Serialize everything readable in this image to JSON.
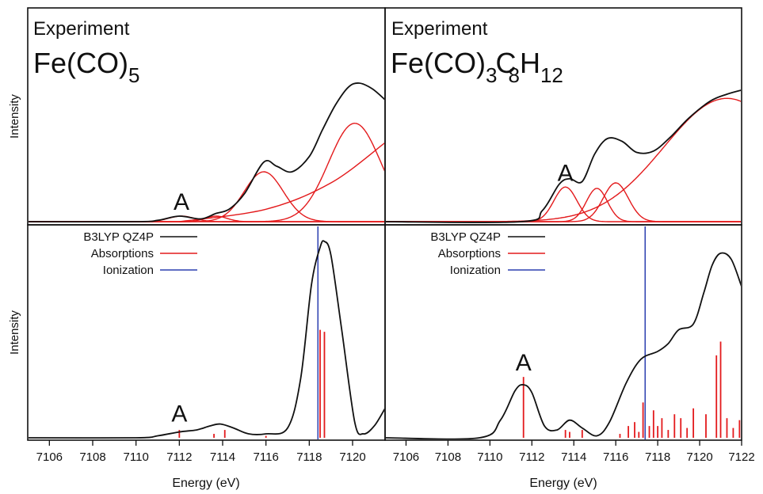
{
  "figure": {
    "ylabel_top": "Intensity",
    "ylabel_bottom": "Intensity",
    "xlabel_left": "Energy (eV)",
    "xlabel_right": "Energy (eV)"
  },
  "panels": {
    "top_left": {
      "heading": "Experiment",
      "formula": {
        "base": "Fe(CO)",
        "sub": "5"
      },
      "peak_label": "A"
    },
    "top_right": {
      "heading": "Experiment",
      "formula": {
        "base1": "Fe(CO)",
        "sub1": "3",
        "base2": "C",
        "sub2": "8",
        "base3": "H",
        "sub3": "12"
      },
      "peak_label": "A"
    },
    "bottom_left": {
      "legend": [
        "B3LYP QZ4P",
        "Absorptions",
        "Ionization"
      ],
      "peak_label": "A"
    },
    "bottom_right": {
      "legend": [
        "B3LYP QZ4P",
        "Absorptions",
        "Ionization"
      ],
      "peak_label": "A"
    }
  },
  "colors": {
    "total": "#111111",
    "components": "#e31a1c",
    "absorptions": "#e31a1c",
    "ionization": "#2b3fb0"
  },
  "chart_data": [
    {
      "type": "line",
      "panel": "top_left",
      "xlim": [
        7105,
        7121.5
      ],
      "ylim": [
        0,
        1
      ],
      "title": "Experiment Fe(CO)5",
      "series": [
        {
          "name": "total",
          "x": [
            7110,
            7111,
            7112,
            7113,
            7113.7,
            7114.3,
            7115,
            7115.9,
            7116.5,
            7117.2,
            7118,
            7118.6,
            7119.2,
            7119.8,
            7120.3,
            7120.9,
            7121.5
          ],
          "y": [
            0.0,
            0.01,
            0.04,
            0.02,
            0.06,
            0.09,
            0.2,
            0.43,
            0.4,
            0.36,
            0.47,
            0.66,
            0.84,
            0.97,
            1.0,
            0.96,
            0.88
          ]
        },
        {
          "name": "component_A",
          "center": 7112.1,
          "width": 0.6,
          "amplitude": 0.04
        },
        {
          "name": "component_2",
          "center": 7113.7,
          "width": 0.5,
          "amplitude": 0.04
        },
        {
          "name": "component_3",
          "center": 7115.9,
          "width": 0.9,
          "amplitude": 0.36
        },
        {
          "name": "component_4",
          "center": 7120.1,
          "width": 1.2,
          "amplitude": 0.71
        },
        {
          "name": "edge",
          "x": [
            7112,
            7116,
            7119,
            7121.5
          ],
          "y": [
            0.0,
            0.09,
            0.28,
            0.57
          ]
        }
      ],
      "annotations": [
        {
          "text": "A",
          "x": 7112.1
        }
      ]
    },
    {
      "type": "line",
      "panel": "top_right",
      "xlim": [
        7105,
        7122
      ],
      "ylim": [
        0,
        1
      ],
      "title": "Experiment Fe(CO)3C8H12",
      "series": [
        {
          "name": "total",
          "x": [
            7111.5,
            7112.5,
            7113.3,
            7113.8,
            7114.4,
            7115,
            7115.6,
            7116.3,
            7117,
            7117.8,
            7118.6,
            7119.5,
            7120.5,
            7121.3,
            7122
          ],
          "y": [
            0.0,
            0.08,
            0.27,
            0.31,
            0.29,
            0.49,
            0.6,
            0.58,
            0.5,
            0.51,
            0.61,
            0.75,
            0.87,
            0.92,
            0.95
          ]
        },
        {
          "name": "component_A",
          "center": 7113.6,
          "width": 0.55,
          "amplitude": 0.25
        },
        {
          "name": "component_2",
          "center": 7115.1,
          "width": 0.5,
          "amplitude": 0.24
        },
        {
          "name": "component_3",
          "center": 7116.0,
          "width": 0.6,
          "amplitude": 0.28
        },
        {
          "name": "component_4",
          "center": 7121.3,
          "width": 3.0,
          "amplitude": 0.89
        }
      ],
      "annotations": [
        {
          "text": "A",
          "x": 7113.6
        }
      ]
    },
    {
      "type": "line",
      "panel": "bottom_left",
      "xlim": [
        7105,
        7121.5
      ],
      "xticks": [
        7106,
        7108,
        7110,
        7112,
        7114,
        7116,
        7118,
        7120
      ],
      "ylim": [
        0,
        1
      ],
      "xlabel": "Energy (eV)",
      "series": [
        {
          "name": "B3LYP QZ4P",
          "x": [
            7110,
            7111,
            7112,
            7112.8,
            7113.4,
            7113.9,
            7114.5,
            7115.2,
            7116,
            7117,
            7117.6,
            7118.1,
            7118.5,
            7118.7,
            7119,
            7119.5,
            7120.1,
            7120.5,
            7121,
            7121.5
          ],
          "y": [
            0.0,
            0.01,
            0.03,
            0.04,
            0.06,
            0.07,
            0.05,
            0.02,
            0.02,
            0.05,
            0.3,
            0.78,
            0.97,
            1.0,
            0.93,
            0.55,
            0.08,
            0.02,
            0.06,
            0.15
          ]
        },
        {
          "name": "Absorptions",
          "x": [
            7112.0,
            7113.6,
            7114.1,
            7116.0,
            7118.5,
            7118.7
          ],
          "y": [
            0.04,
            0.02,
            0.04,
            0.01,
            0.55,
            0.54
          ]
        },
        {
          "name": "Ionization",
          "x": [
            7118.4
          ]
        }
      ],
      "annotations": [
        {
          "text": "A",
          "x": 7112.0
        }
      ]
    },
    {
      "type": "line",
      "panel": "bottom_right",
      "xlim": [
        7105,
        7122
      ],
      "xticks": [
        7106,
        7108,
        7110,
        7112,
        7114,
        7116,
        7118,
        7120,
        7122
      ],
      "ylim": [
        0,
        1
      ],
      "xlabel": "Energy (eV)",
      "series": [
        {
          "name": "B3LYP QZ4P",
          "x": [
            7109.5,
            7110.5,
            7111.2,
            7111.6,
            7112,
            7112.6,
            7113.2,
            7113.8,
            7114.4,
            7115.1,
            7115.7,
            7116.5,
            7117.2,
            7118,
            7118.5,
            7119,
            7119.7,
            7120.2,
            7120.6,
            7121,
            7121.5,
            7122
          ],
          "y": [
            0.0,
            0.09,
            0.24,
            0.27,
            0.23,
            0.06,
            0.04,
            0.09,
            0.05,
            0.01,
            0.08,
            0.28,
            0.4,
            0.44,
            0.48,
            0.55,
            0.58,
            0.74,
            0.88,
            0.94,
            0.91,
            0.77
          ]
        },
        {
          "name": "Absorptions",
          "x": [
            7111.6,
            7113.6,
            7113.8,
            7114.4,
            7116.2,
            7116.6,
            7116.9,
            7117.1,
            7117.3,
            7117.6,
            7117.8,
            7118.0,
            7118.2,
            7118.5,
            7118.8,
            7119.1,
            7119.4,
            7119.7,
            7120.3,
            7120.8,
            7121.0,
            7121.3,
            7121.6,
            7121.9
          ],
          "y": [
            0.31,
            0.04,
            0.03,
            0.04,
            0.02,
            0.06,
            0.08,
            0.03,
            0.18,
            0.06,
            0.14,
            0.06,
            0.1,
            0.04,
            0.12,
            0.1,
            0.05,
            0.15,
            0.12,
            0.42,
            0.49,
            0.1,
            0.05,
            0.09
          ]
        },
        {
          "name": "Ionization",
          "x": [
            7117.4
          ]
        }
      ],
      "annotations": [
        {
          "text": "A",
          "x": 7111.6
        }
      ]
    }
  ]
}
